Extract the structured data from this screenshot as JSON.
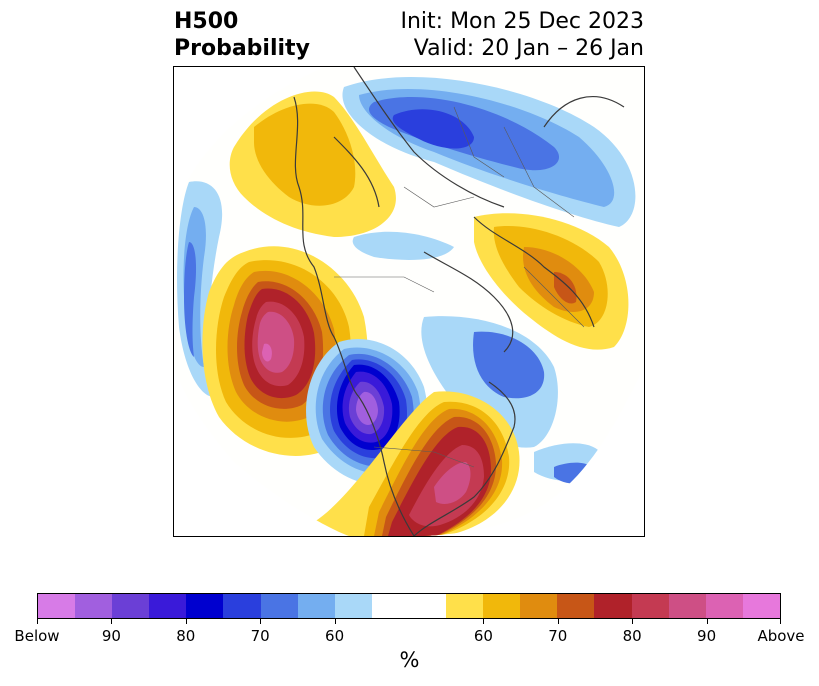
{
  "title": {
    "left_line1": "H500",
    "left_line2": "Probability",
    "right_line1": "Init: Mon 25 Dec 2023",
    "right_line2": "Valid: 20 Jan – 26 Jan"
  },
  "colorbar": {
    "segments": [
      {
        "color": "#d77be7",
        "side": "below"
      },
      {
        "color": "#a15fdf",
        "side": "below"
      },
      {
        "color": "#6b3fd6",
        "side": "below"
      },
      {
        "color": "#3a1ad9",
        "side": "below"
      },
      {
        "color": "#0000cf",
        "side": "below"
      },
      {
        "color": "#2a3fdd",
        "side": "below"
      },
      {
        "color": "#4a74e4",
        "side": "below"
      },
      {
        "color": "#74aef0",
        "side": "below"
      },
      {
        "color": "#a9d8f8",
        "side": "below"
      },
      {
        "color": "#ffffff",
        "side": "neutral"
      },
      {
        "color": "#ffe04a",
        "side": "above"
      },
      {
        "color": "#f1b80b",
        "side": "above"
      },
      {
        "color": "#e08c0f",
        "side": "above"
      },
      {
        "color": "#c75617",
        "side": "above"
      },
      {
        "color": "#b0222a",
        "side": "above"
      },
      {
        "color": "#c43a52",
        "side": "above"
      },
      {
        "color": "#ce4f85",
        "side": "above"
      },
      {
        "color": "#dc62b3",
        "side": "above"
      },
      {
        "color": "#e778dc",
        "side": "above"
      }
    ],
    "tick_labels": [
      "Below",
      "90",
      "80",
      "70",
      "60",
      "60",
      "70",
      "80",
      "90",
      "Above"
    ],
    "unit": "%"
  },
  "map": {
    "projection": "polar-stereographic-north-america",
    "anomalies": [
      {
        "region": "north-pacific",
        "sign": "above",
        "max_percent": 90
      },
      {
        "region": "western-north-america",
        "sign": "below",
        "max_percent": 90
      },
      {
        "region": "eastern-north-america",
        "sign": "above",
        "max_percent": 90
      },
      {
        "region": "scandinavia-northwest-russia",
        "sign": "above",
        "max_percent": 70
      },
      {
        "region": "greenland-iceland-north-atlantic",
        "sign": "above",
        "max_percent": 60
      },
      {
        "region": "east-siberia-pacific-arctic",
        "sign": "below",
        "max_percent": 80
      },
      {
        "region": "north-atlantic-east",
        "sign": "below",
        "max_percent": 70
      },
      {
        "region": "central-pacific-west",
        "sign": "below",
        "max_percent": 70
      }
    ]
  }
}
